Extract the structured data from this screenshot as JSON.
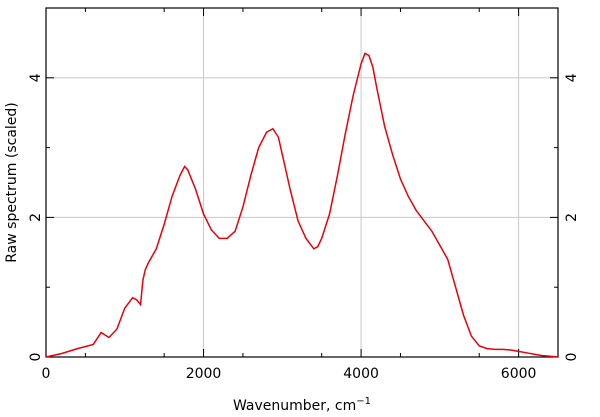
{
  "chart_data": {
    "type": "line",
    "xlabel_main": "Wavenumber, cm",
    "xlabel_sup": "−1",
    "ylabel": "Raw spectrum (scaled)",
    "xlim": [
      0,
      6500
    ],
    "ylim": [
      0,
      5
    ],
    "grid": true,
    "x_ticks": [
      0,
      2000,
      4000,
      6000
    ],
    "x_tick_labels": [
      "0",
      "2000",
      "4000",
      "6000"
    ],
    "y_ticks": [
      0,
      2,
      4
    ],
    "y_tick_labels": [
      "0",
      "2",
      "4"
    ],
    "y_tick_labels_right": [
      "0",
      "2",
      "4"
    ],
    "series": [
      {
        "color": "#e8000b",
        "x": [
          0,
          200,
          400,
          600,
          700,
          800,
          900,
          1000,
          1100,
          1150,
          1200,
          1230,
          1260,
          1300,
          1400,
          1500,
          1600,
          1700,
          1760,
          1800,
          1900,
          2000,
          2100,
          2200,
          2300,
          2400,
          2500,
          2600,
          2700,
          2800,
          2880,
          2950,
          3000,
          3100,
          3200,
          3300,
          3400,
          3450,
          3500,
          3600,
          3700,
          3800,
          3900,
          4000,
          4050,
          4100,
          4150,
          4200,
          4300,
          4400,
          4500,
          4600,
          4700,
          4800,
          4900,
          5000,
          5100,
          5200,
          5300,
          5400,
          5500,
          5600,
          5700,
          5800,
          5900,
          6000,
          6100,
          6200,
          6300,
          6400,
          6500
        ],
        "y": [
          0.0,
          0.05,
          0.12,
          0.18,
          0.35,
          0.28,
          0.4,
          0.7,
          0.85,
          0.82,
          0.75,
          1.1,
          1.25,
          1.35,
          1.55,
          1.9,
          2.3,
          2.6,
          2.73,
          2.68,
          2.4,
          2.05,
          1.82,
          1.7,
          1.7,
          1.8,
          2.15,
          2.6,
          3.0,
          3.22,
          3.27,
          3.15,
          2.9,
          2.4,
          1.95,
          1.7,
          1.55,
          1.58,
          1.7,
          2.05,
          2.6,
          3.2,
          3.75,
          4.2,
          4.35,
          4.32,
          4.15,
          3.85,
          3.3,
          2.9,
          2.55,
          2.3,
          2.1,
          1.95,
          1.8,
          1.6,
          1.4,
          1.0,
          0.6,
          0.3,
          0.16,
          0.12,
          0.11,
          0.11,
          0.1,
          0.08,
          0.06,
          0.04,
          0.02,
          0.01,
          0.0
        ]
      }
    ]
  }
}
